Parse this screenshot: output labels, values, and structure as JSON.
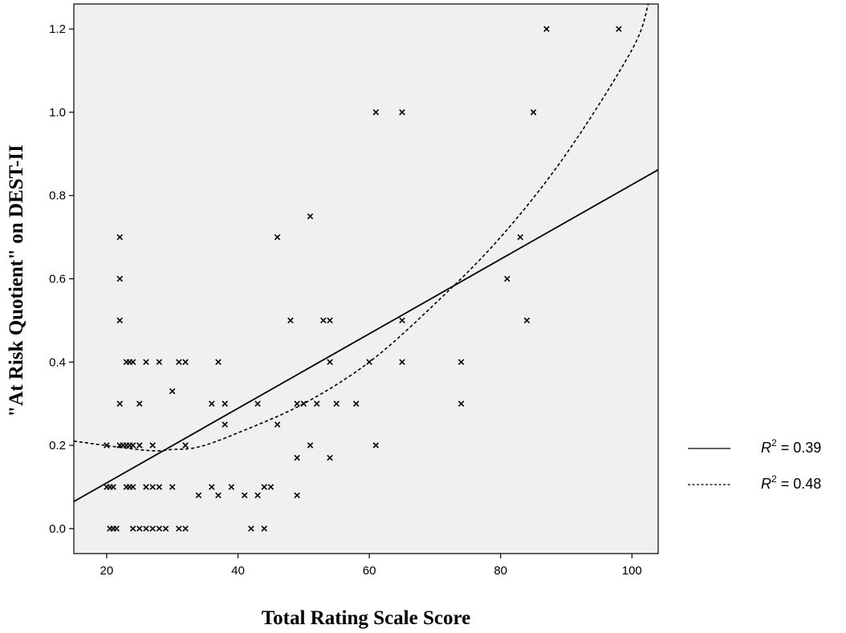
{
  "chart_data": {
    "type": "scatter",
    "xlabel": "Total Rating Scale Score",
    "ylabel": "\"At Risk Quotient\" on DEST-II",
    "xlim": [
      15,
      104
    ],
    "ylim": [
      -0.06,
      1.26
    ],
    "xticks": [
      "20",
      "40",
      "60",
      "80",
      "100"
    ],
    "yticks": [
      "0.0",
      "0.2",
      "0.4",
      "0.6",
      "0.8",
      "1.0",
      "1.2"
    ],
    "grid": false,
    "background": "#f0f0f0",
    "marker": "x",
    "points": [
      [
        20,
        0.2
      ],
      [
        20,
        0.1
      ],
      [
        20.5,
        0.1
      ],
      [
        21,
        0.1
      ],
      [
        20.5,
        0
      ],
      [
        21,
        0
      ],
      [
        21.5,
        0
      ],
      [
        22,
        0.7
      ],
      [
        22,
        0.6
      ],
      [
        22,
        0.5
      ],
      [
        22,
        0.3
      ],
      [
        22,
        0.2
      ],
      [
        22.5,
        0.2
      ],
      [
        23,
        0.2
      ],
      [
        23,
        0.4
      ],
      [
        23.5,
        0.4
      ],
      [
        24,
        0.4
      ],
      [
        23.5,
        0.2
      ],
      [
        24,
        0.2
      ],
      [
        25,
        0.2
      ],
      [
        25,
        0.3
      ],
      [
        23,
        0.1
      ],
      [
        23.5,
        0.1
      ],
      [
        24,
        0.1
      ],
      [
        24,
        0
      ],
      [
        25,
        0
      ],
      [
        26,
        0
      ],
      [
        27,
        0
      ],
      [
        28,
        0
      ],
      [
        29,
        0
      ],
      [
        26,
        0.4
      ],
      [
        28,
        0.4
      ],
      [
        26,
        0.1
      ],
      [
        27,
        0.1
      ],
      [
        28,
        0.1
      ],
      [
        27,
        0.2
      ],
      [
        30,
        0.33
      ],
      [
        30,
        0.1
      ],
      [
        31,
        0.4
      ],
      [
        32,
        0.4
      ],
      [
        32,
        0.2
      ],
      [
        31,
        0
      ],
      [
        32,
        0
      ],
      [
        34,
        0.08
      ],
      [
        36,
        0.3
      ],
      [
        36,
        0.1
      ],
      [
        37,
        0.4
      ],
      [
        37,
        0.08
      ],
      [
        38,
        0.3
      ],
      [
        38,
        0.25
      ],
      [
        39,
        0.1
      ],
      [
        41,
        0.08
      ],
      [
        42,
        0
      ],
      [
        43,
        0.3
      ],
      [
        43,
        0.08
      ],
      [
        44,
        0.1
      ],
      [
        44,
        0
      ],
      [
        45,
        0.1
      ],
      [
        46,
        0.7
      ],
      [
        46,
        0.25
      ],
      [
        48,
        0.5
      ],
      [
        49,
        0.3
      ],
      [
        49,
        0.17
      ],
      [
        49,
        0.08
      ],
      [
        50,
        0.3
      ],
      [
        51,
        0.75
      ],
      [
        51,
        0.2
      ],
      [
        52,
        0.3
      ],
      [
        53,
        0.5
      ],
      [
        54,
        0.5
      ],
      [
        54,
        0.4
      ],
      [
        54,
        0.17
      ],
      [
        55,
        0.3
      ],
      [
        58,
        0.3
      ],
      [
        60,
        0.4
      ],
      [
        61,
        1.0
      ],
      [
        61,
        0.2
      ],
      [
        65,
        1.0
      ],
      [
        65,
        0.5
      ],
      [
        65,
        0.4
      ],
      [
        74,
        0.4
      ],
      [
        74,
        0.3
      ],
      [
        81,
        0.6
      ],
      [
        83,
        0.7
      ],
      [
        84,
        0.5
      ],
      [
        85,
        1.0
      ],
      [
        87,
        1.2
      ],
      [
        98,
        1.2
      ]
    ],
    "fits": [
      {
        "style": "solid",
        "x": [
          15,
          104
        ],
        "y": [
          0.065,
          0.862
        ],
        "r2": "0.39"
      },
      {
        "style": "dashed",
        "x": [
          15,
          26,
          30,
          34,
          40,
          50,
          60,
          70,
          80,
          90,
          100,
          102.5
        ],
        "y": [
          0.21,
          0.188,
          0.19,
          0.196,
          0.23,
          0.3,
          0.4,
          0.54,
          0.7,
          0.9,
          1.15,
          1.26
        ],
        "r2": "0.48"
      }
    ]
  },
  "legend": {
    "r_symbol": "R",
    "superscript": "2",
    "items": [
      {
        "line_style": "solid",
        "value": " = 0.39"
      },
      {
        "line_style": "dashed",
        "value": " = 0.48"
      }
    ]
  }
}
